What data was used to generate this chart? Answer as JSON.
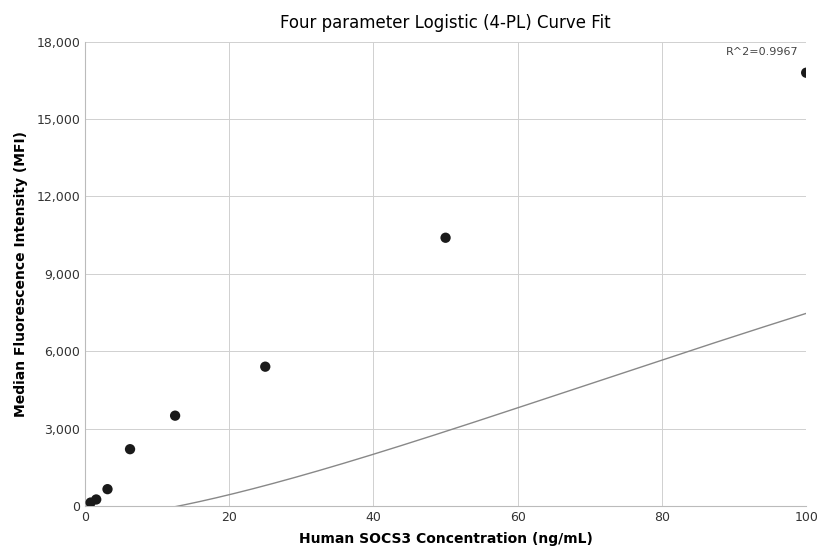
{
  "title": "Four parameter Logistic (4-PL) Curve Fit",
  "xlabel": "Human SOCS3 Concentration (ng/mL)",
  "ylabel": "Median Fluorescence Intensity (MFI)",
  "scatter_x": [
    0.781,
    1.563,
    3.125,
    6.25,
    12.5,
    25,
    50,
    100
  ],
  "scatter_y": [
    130,
    250,
    650,
    2200,
    3500,
    5400,
    10400,
    16800
  ],
  "xlim": [
    0,
    100
  ],
  "ylim": [
    0,
    18000
  ],
  "xticks": [
    0,
    20,
    40,
    60,
    80,
    100
  ],
  "yticks": [
    0,
    3000,
    6000,
    9000,
    12000,
    15000,
    18000
  ],
  "r_squared": "R^2=0.9967",
  "r_squared_x": 99,
  "r_squared_y": 17800,
  "dot_color": "#1a1a1a",
  "curve_color": "#888888",
  "background_color": "#ffffff",
  "grid_color": "#d0d0d0",
  "title_fontsize": 12,
  "label_fontsize": 10,
  "tick_fontsize": 9
}
